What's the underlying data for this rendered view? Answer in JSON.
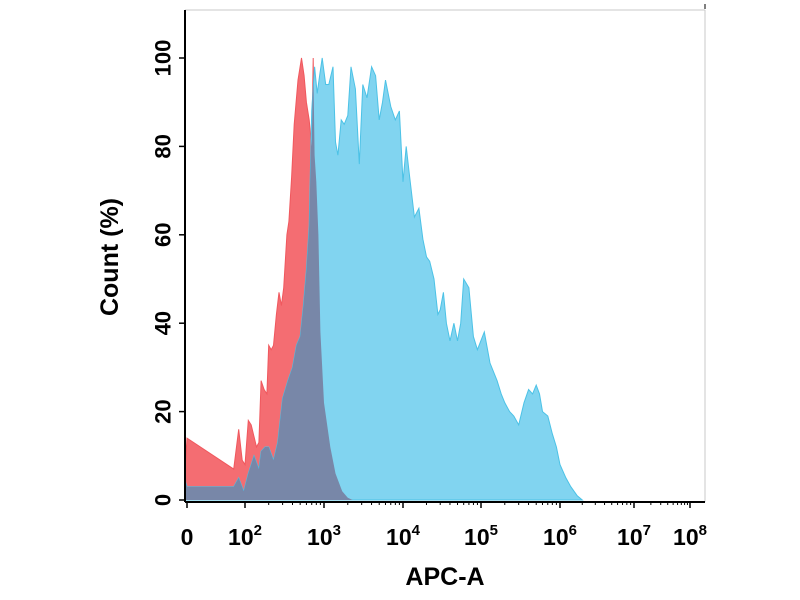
{
  "chart_data": {
    "type": "area",
    "xlabel": "APC-A",
    "ylabel": "Count  (%)",
    "x_scale": "biexponential",
    "xlim": [
      -300,
      100000000
    ],
    "ylim": [
      0,
      108
    ],
    "grid": false,
    "legend": "none",
    "x_tick_labels": [
      {
        "value": 0,
        "base": "0",
        "exp": ""
      },
      {
        "value": 100,
        "base": "10",
        "exp": "2"
      },
      {
        "value": 1000,
        "base": "10",
        "exp": "3"
      },
      {
        "value": 10000,
        "base": "10",
        "exp": "4"
      },
      {
        "value": 100000,
        "base": "10",
        "exp": "5"
      },
      {
        "value": 1000000,
        "base": "10",
        "exp": "6"
      },
      {
        "value": 10000000,
        "base": "10",
        "exp": "7"
      },
      {
        "value": 100000000,
        "base": "10",
        "exp": "8"
      }
    ],
    "y_tick_labels": [
      {
        "value": 0,
        "label": "0"
      },
      {
        "value": 20,
        "label": "20"
      },
      {
        "value": 40,
        "label": "40"
      },
      {
        "value": 60,
        "label": "60"
      },
      {
        "value": 80,
        "label": "80"
      },
      {
        "value": 100,
        "label": "100"
      }
    ],
    "series": [
      {
        "color": "#f0585e",
        "fill": "#f46d72",
        "points": [
          [
            -300,
            15
          ],
          [
            -200,
            12
          ],
          [
            -120,
            14
          ],
          [
            -60,
            9
          ],
          [
            0,
            14
          ],
          [
            40,
            7
          ],
          [
            60,
            16
          ],
          [
            80,
            9
          ],
          [
            100,
            8
          ],
          [
            110,
            18
          ],
          [
            120,
            17
          ],
          [
            140,
            12
          ],
          [
            150,
            13
          ],
          [
            160,
            27
          ],
          [
            175,
            25
          ],
          [
            190,
            24
          ],
          [
            200,
            35
          ],
          [
            215,
            34
          ],
          [
            230,
            35
          ],
          [
            250,
            42
          ],
          [
            270,
            47
          ],
          [
            290,
            44
          ],
          [
            310,
            48
          ],
          [
            340,
            60
          ],
          [
            360,
            63
          ],
          [
            390,
            73
          ],
          [
            420,
            85
          ],
          [
            470,
            95
          ],
          [
            520,
            100
          ],
          [
            560,
            96
          ],
          [
            600,
            90
          ],
          [
            650,
            86
          ],
          [
            700,
            80
          ],
          [
            730,
            100
          ],
          [
            760,
            78
          ],
          [
            800,
            72
          ],
          [
            850,
            60
          ],
          [
            900,
            38
          ],
          [
            1000,
            22
          ],
          [
            1200,
            12
          ],
          [
            1400,
            6
          ],
          [
            1700,
            2
          ],
          [
            2000,
            0.5
          ],
          [
            2300,
            0
          ]
        ]
      },
      {
        "color": "#4cc2e6",
        "fill": "#81d4f0",
        "points": [
          [
            -300,
            5
          ],
          [
            -150,
            9
          ],
          [
            -60,
            4
          ],
          [
            0,
            3
          ],
          [
            40,
            3
          ],
          [
            60,
            5
          ],
          [
            90,
            2
          ],
          [
            110,
            6
          ],
          [
            130,
            10
          ],
          [
            150,
            7
          ],
          [
            160,
            11
          ],
          [
            180,
            12
          ],
          [
            200,
            12
          ],
          [
            230,
            9
          ],
          [
            260,
            13
          ],
          [
            300,
            23
          ],
          [
            350,
            27
          ],
          [
            400,
            30
          ],
          [
            450,
            35
          ],
          [
            500,
            37
          ],
          [
            550,
            44
          ],
          [
            600,
            52
          ],
          [
            650,
            62
          ],
          [
            700,
            88
          ],
          [
            760,
            98
          ],
          [
            820,
            92
          ],
          [
            880,
            96
          ],
          [
            950,
            100
          ],
          [
            1050,
            94
          ],
          [
            1150,
            94
          ],
          [
            1300,
            98
          ],
          [
            1400,
            81
          ],
          [
            1500,
            78
          ],
          [
            1650,
            86
          ],
          [
            1800,
            85
          ],
          [
            2000,
            87
          ],
          [
            2200,
            98
          ],
          [
            2500,
            93
          ],
          [
            2800,
            76
          ],
          [
            3100,
            94
          ],
          [
            3500,
            91
          ],
          [
            4000,
            98
          ],
          [
            4500,
            96
          ],
          [
            5000,
            86
          ],
          [
            5500,
            90
          ],
          [
            6000,
            95
          ],
          [
            7000,
            89
          ],
          [
            8000,
            86
          ],
          [
            9000,
            88
          ],
          [
            10000,
            72
          ],
          [
            11000,
            80
          ],
          [
            12000,
            74
          ],
          [
            14000,
            64
          ],
          [
            16000,
            66
          ],
          [
            18000,
            59
          ],
          [
            20000,
            55
          ],
          [
            22000,
            54
          ],
          [
            25000,
            50
          ],
          [
            28000,
            42
          ],
          [
            30000,
            43
          ],
          [
            33000,
            47
          ],
          [
            36000,
            40
          ],
          [
            40000,
            36
          ],
          [
            45000,
            40
          ],
          [
            50000,
            36
          ],
          [
            55000,
            40
          ],
          [
            60000,
            50
          ],
          [
            70000,
            48
          ],
          [
            80000,
            37
          ],
          [
            90000,
            34
          ],
          [
            110000,
            38
          ],
          [
            130000,
            31
          ],
          [
            160000,
            27
          ],
          [
            180000,
            24
          ],
          [
            200000,
            22
          ],
          [
            230000,
            20
          ],
          [
            260000,
            19
          ],
          [
            300000,
            17
          ],
          [
            350000,
            22
          ],
          [
            400000,
            25
          ],
          [
            450000,
            24
          ],
          [
            500000,
            26
          ],
          [
            550000,
            24
          ],
          [
            600000,
            20
          ],
          [
            700000,
            19
          ],
          [
            800000,
            15
          ],
          [
            900000,
            12
          ],
          [
            1000000,
            8
          ],
          [
            1200000,
            5
          ],
          [
            1400000,
            3
          ],
          [
            1700000,
            1
          ],
          [
            2000000,
            0
          ]
        ]
      }
    ],
    "colors": {
      "overlap_tint": "#7887a8",
      "axis": "#000000",
      "frame": "#c8c8c8"
    }
  }
}
